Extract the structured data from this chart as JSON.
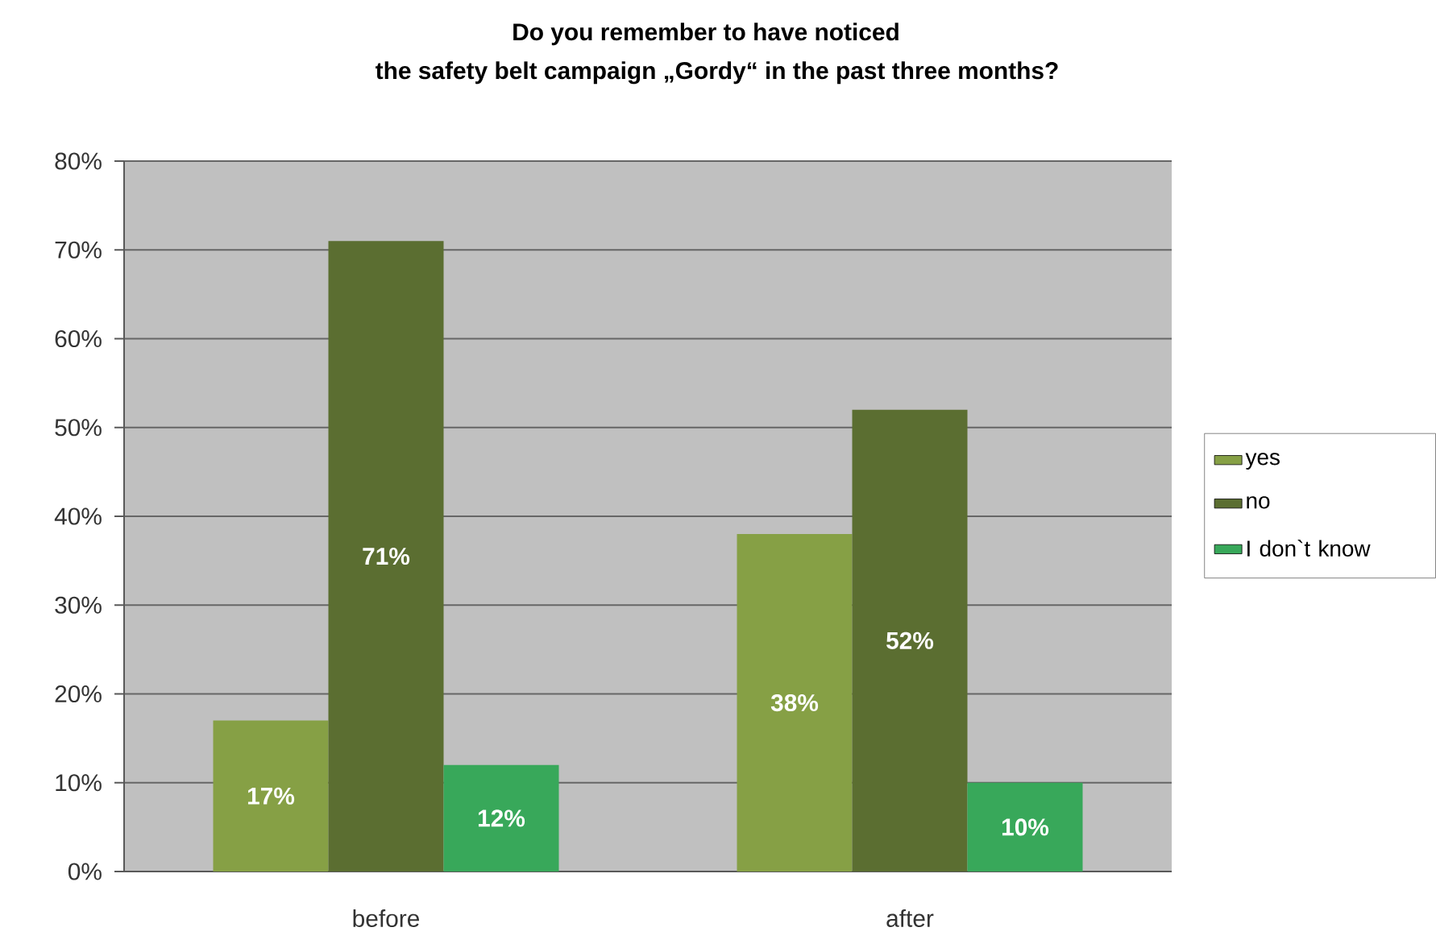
{
  "chart_data": {
    "type": "bar",
    "title": "Do you remember to have noticed",
    "subtitle": "the safety belt campaign „Gordy“ in the past three months?",
    "categories": [
      "before",
      "after"
    ],
    "series": [
      {
        "name": "yes",
        "color": "#86a045",
        "values": [
          17,
          38
        ],
        "value_labels": [
          "17%",
          "38%"
        ]
      },
      {
        "name": "no",
        "color": "#5b6e31",
        "values": [
          71,
          52
        ],
        "value_labels": [
          "71%",
          "52%"
        ]
      },
      {
        "name": "I don`t know",
        "color": "#38a85a",
        "values": [
          12,
          10
        ],
        "value_labels": [
          "12%",
          "10%"
        ]
      }
    ],
    "ylim": [
      0,
      80
    ],
    "yticks": [
      {
        "value": 0,
        "label": "0%"
      },
      {
        "value": 10,
        "label": "10%"
      },
      {
        "value": 20,
        "label": "20%"
      },
      {
        "value": 30,
        "label": "30%"
      },
      {
        "value": 40,
        "label": "40%"
      },
      {
        "value": 50,
        "label": "50%"
      },
      {
        "value": 60,
        "label": "60%"
      },
      {
        "value": 70,
        "label": "70%"
      },
      {
        "value": 80,
        "label": "80%"
      }
    ],
    "grid": "y",
    "legend": "right"
  }
}
